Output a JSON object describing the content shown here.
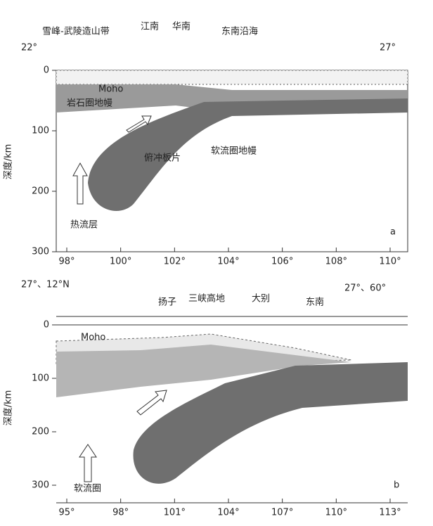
{
  "panel_a": {
    "top_labels": [
      "雪峰-武陵造山带",
      "江南",
      "华南",
      "东南沿海"
    ],
    "coord_left": "22°",
    "coord_right": "27°",
    "moho": "Moho",
    "crust": "岩石圈地幔",
    "slab": "俯冲板片",
    "mantle": "软流圈地幔",
    "plume": "热流层",
    "y_axis_label": "深度/km",
    "yticks": [
      "0",
      "100",
      "200",
      "300"
    ],
    "xticks": [
      "98°",
      "100°",
      "102°",
      "104°",
      "106°",
      "108°",
      "110°"
    ],
    "panel_tag": "a"
  },
  "panel_b": {
    "coord_left": "27°、12°N",
    "top_labels": [
      "扬子",
      "三峡高地",
      "大别",
      "东南"
    ],
    "coord_right": "27°、60°",
    "moho": "Moho",
    "plume": "软流圈",
    "y_axis_label": "深度/km",
    "yticks": [
      "0",
      "100",
      "200",
      "300"
    ],
    "xticks": [
      "95°",
      "98°",
      "101°",
      "104°",
      "107°",
      "110°",
      "113°"
    ],
    "panel_tag": "b"
  }
}
